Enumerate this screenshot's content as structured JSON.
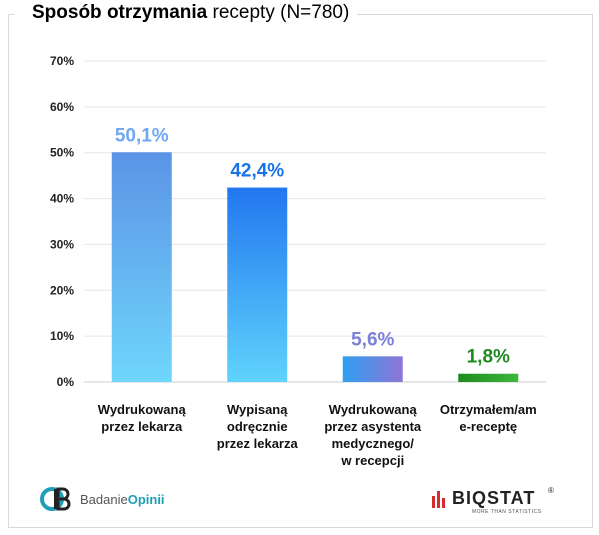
{
  "title": {
    "bold": "Sposób otrzymania",
    "rest": " recepty (N=780)"
  },
  "chart_data": {
    "type": "bar",
    "title": "Sposób otrzymania recepty (N=780)",
    "categories": [
      [
        "Wydrukowaną",
        "przez lekarza"
      ],
      [
        "Wypisaną",
        "odręcznie",
        "przez lekarza"
      ],
      [
        "Wydrukowaną",
        "przez asystenta",
        "medycznego/",
        "w recepcji"
      ],
      [
        "Otrzymałem/am",
        "e-receptę"
      ]
    ],
    "values": [
      50.1,
      42.4,
      5.6,
      1.8
    ],
    "value_labels": [
      "50,1%",
      "42,4%",
      "5,6%",
      "1,8%"
    ],
    "label_colors": [
      "#6fa8f0",
      "#1a73e8",
      "#7b7fd8",
      "#1e8a1e"
    ],
    "ylim": [
      0,
      70
    ],
    "yticks": [
      "0%",
      "10%",
      "20%",
      "30%",
      "40%",
      "50%",
      "60%",
      "70%"
    ],
    "grid": true
  },
  "logos": {
    "left_label_plain": "Badanie",
    "left_label_bold": "Opinii",
    "right_name": "BIQSTAT",
    "right_tag": "MORE THAN STATISTICS",
    "right_reg": "®"
  }
}
